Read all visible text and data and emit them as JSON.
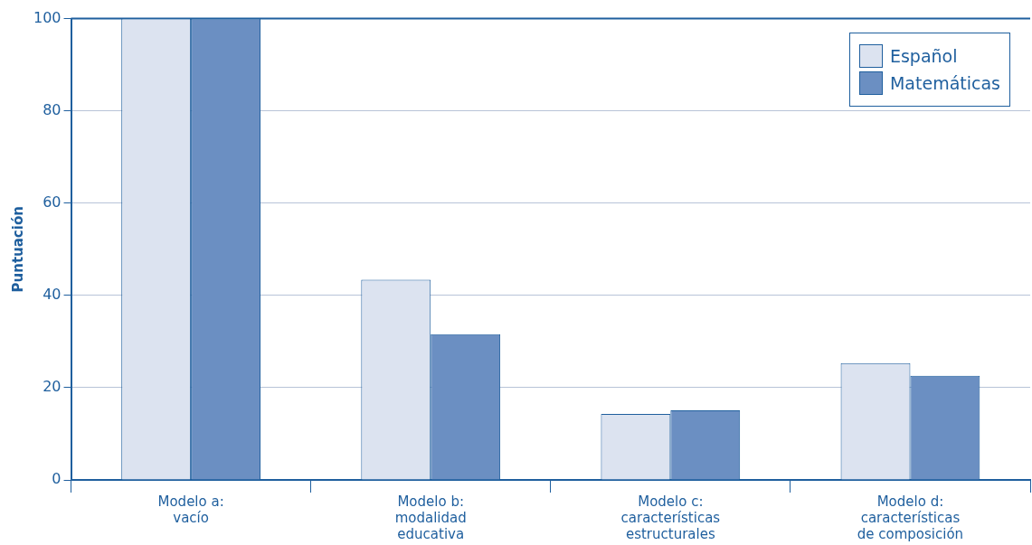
{
  "chart_data": {
    "type": "bar",
    "ylabel": "Puntuación",
    "categories": [
      "Modelo a:\nvacío",
      "Modelo b:\nmodalidad\neducativa",
      "Modelo c:\ncaracterísticas\nestructurales",
      "Modelo d:\ncaracterísticas\nde composición"
    ],
    "series": [
      {
        "name": "Español",
        "color": "#dce3f0",
        "values": [
          100,
          43.4,
          14.3,
          25.3
        ]
      },
      {
        "name": "Matemáticas",
        "color": "#6b8fc2",
        "values": [
          100,
          31.6,
          15.1,
          22.6
        ]
      }
    ],
    "ylim": [
      0,
      100
    ],
    "yticks": [
      0,
      20,
      40,
      60,
      80,
      100
    ],
    "grid": "y",
    "legend": "top right"
  }
}
